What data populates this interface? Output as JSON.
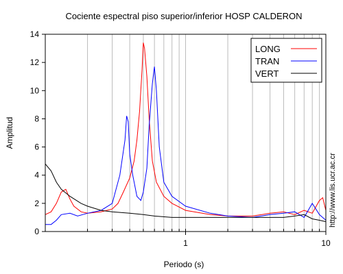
{
  "chart_data": {
    "type": "line",
    "title": "Cociente espectral piso superior/inferior  HOSP CALDERON",
    "xlabel": "Periodo (s)",
    "ylabel": "Amplitud",
    "xscale": "log",
    "xlim": [
      0.1,
      10
    ],
    "ylim": [
      0,
      14
    ],
    "x_ticks": [
      1,
      10
    ],
    "x_tick_labels": [
      "1",
      "10"
    ],
    "y_ticks": [
      0,
      2,
      4,
      6,
      8,
      10,
      12,
      14
    ],
    "y_tick_labels": [
      "0",
      "2",
      "4",
      "6",
      "8",
      "10",
      "12",
      "14"
    ],
    "grid": true,
    "legend_position": "top-right",
    "series": [
      {
        "name": "LONG",
        "color": "#ff0000",
        "points": [
          [
            0.1,
            1.2
          ],
          [
            0.11,
            1.4
          ],
          [
            0.12,
            2.0
          ],
          [
            0.13,
            2.8
          ],
          [
            0.14,
            3.0
          ],
          [
            0.15,
            2.3
          ],
          [
            0.16,
            1.8
          ],
          [
            0.18,
            1.4
          ],
          [
            0.2,
            1.3
          ],
          [
            0.25,
            1.4
          ],
          [
            0.3,
            1.6
          ],
          [
            0.33,
            2.0
          ],
          [
            0.36,
            2.8
          ],
          [
            0.4,
            3.8
          ],
          [
            0.43,
            5.0
          ],
          [
            0.45,
            6.5
          ],
          [
            0.47,
            8.5
          ],
          [
            0.49,
            11.5
          ],
          [
            0.5,
            13.4
          ],
          [
            0.51,
            13.0
          ],
          [
            0.53,
            11.0
          ],
          [
            0.55,
            8.0
          ],
          [
            0.58,
            5.0
          ],
          [
            0.62,
            3.5
          ],
          [
            0.7,
            2.5
          ],
          [
            0.8,
            2.0
          ],
          [
            1.0,
            1.5
          ],
          [
            1.5,
            1.2
          ],
          [
            2.0,
            1.1
          ],
          [
            3.0,
            1.1
          ],
          [
            4.0,
            1.3
          ],
          [
            5.0,
            1.4
          ],
          [
            6.0,
            1.2
          ],
          [
            7.0,
            1.5
          ],
          [
            8.0,
            1.3
          ],
          [
            9.0,
            2.2
          ],
          [
            9.5,
            2.4
          ],
          [
            10.0,
            1.5
          ]
        ]
      },
      {
        "name": "TRAN",
        "color": "#0000ff",
        "points": [
          [
            0.1,
            0.5
          ],
          [
            0.11,
            0.5
          ],
          [
            0.12,
            0.8
          ],
          [
            0.13,
            1.2
          ],
          [
            0.15,
            1.3
          ],
          [
            0.17,
            1.1
          ],
          [
            0.2,
            1.3
          ],
          [
            0.25,
            1.5
          ],
          [
            0.3,
            2.0
          ],
          [
            0.34,
            4.0
          ],
          [
            0.37,
            6.5
          ],
          [
            0.38,
            8.2
          ],
          [
            0.39,
            7.8
          ],
          [
            0.4,
            5.5
          ],
          [
            0.42,
            4.0
          ],
          [
            0.45,
            2.5
          ],
          [
            0.48,
            2.2
          ],
          [
            0.5,
            2.8
          ],
          [
            0.53,
            4.5
          ],
          [
            0.55,
            7.5
          ],
          [
            0.58,
            10.5
          ],
          [
            0.6,
            11.7
          ],
          [
            0.62,
            10.0
          ],
          [
            0.65,
            6.0
          ],
          [
            0.7,
            3.5
          ],
          [
            0.8,
            2.5
          ],
          [
            1.0,
            1.8
          ],
          [
            1.5,
            1.3
          ],
          [
            2.0,
            1.1
          ],
          [
            3.0,
            1.0
          ],
          [
            4.0,
            1.2
          ],
          [
            5.0,
            1.3
          ],
          [
            6.0,
            1.4
          ],
          [
            7.0,
            1.0
          ],
          [
            8.0,
            2.0
          ],
          [
            9.0,
            1.2
          ],
          [
            10.0,
            0.8
          ]
        ]
      },
      {
        "name": "VERT",
        "color": "#000000",
        "points": [
          [
            0.1,
            4.8
          ],
          [
            0.11,
            4.3
          ],
          [
            0.12,
            3.5
          ],
          [
            0.13,
            3.0
          ],
          [
            0.15,
            2.5
          ],
          [
            0.18,
            2.0
          ],
          [
            0.2,
            1.8
          ],
          [
            0.25,
            1.5
          ],
          [
            0.3,
            1.4
          ],
          [
            0.4,
            1.3
          ],
          [
            0.5,
            1.2
          ],
          [
            0.6,
            1.1
          ],
          [
            0.8,
            1.0
          ],
          [
            1.0,
            1.0
          ],
          [
            1.5,
            1.0
          ],
          [
            2.0,
            1.0
          ],
          [
            3.0,
            1.0
          ],
          [
            4.0,
            1.0
          ],
          [
            5.0,
            1.0
          ],
          [
            6.0,
            1.1
          ],
          [
            7.0,
            1.2
          ],
          [
            8.0,
            0.9
          ],
          [
            9.0,
            0.8
          ],
          [
            10.0,
            0.7
          ]
        ]
      }
    ],
    "side_note": "http://www.lis.ucr.ac.cr"
  }
}
